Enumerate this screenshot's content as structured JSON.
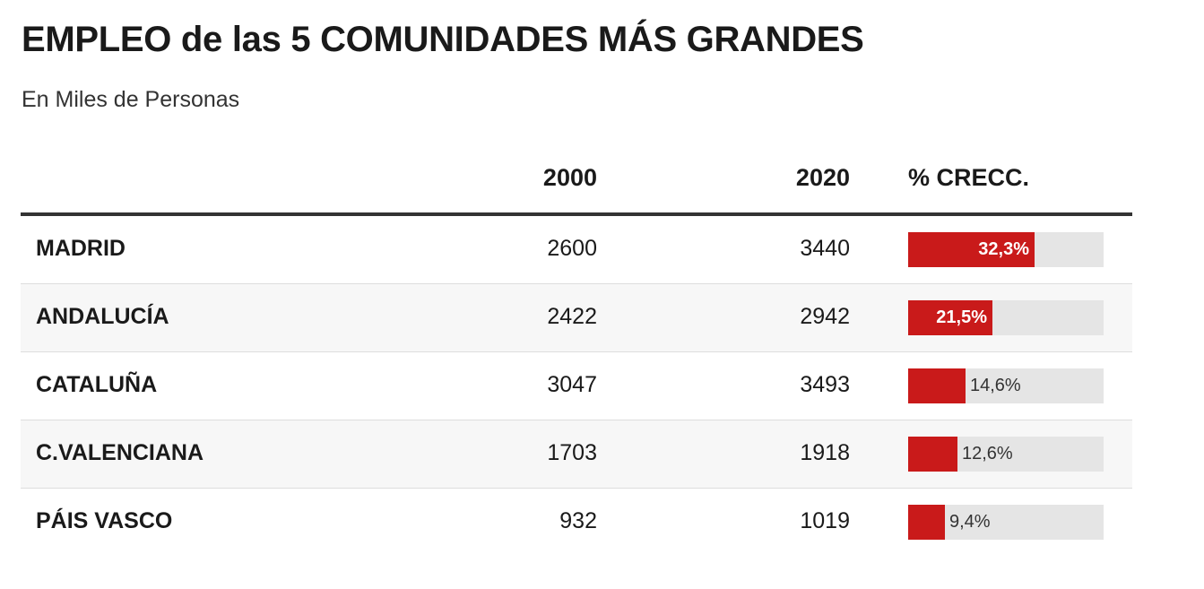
{
  "header": {
    "title": "EMPLEO de las 5 COMUNIDADES MÁS GRANDES",
    "subtitle": "En Miles de Personas"
  },
  "columns": {
    "col_2000": "2000",
    "col_2020": "2020",
    "col_growth": "% CRECC."
  },
  "colors": {
    "bar": "#c91a1a",
    "track": "#e5e5e5",
    "header_rule": "#333333"
  },
  "chart_data": {
    "type": "table",
    "title": "EMPLEO de las 5 COMUNIDADES MÁS GRANDES",
    "subtitle": "En Miles de Personas",
    "columns": [
      "",
      "2000",
      "2020",
      "% CRECC."
    ],
    "growth_max": 50,
    "rows": [
      {
        "name": "MADRID",
        "v2000": "2600",
        "v2020": "3440",
        "growth": 32.3,
        "growth_label": "32,3%"
      },
      {
        "name": "ANDALUCÍA",
        "v2000": "2422",
        "v2020": "2942",
        "growth": 21.5,
        "growth_label": "21,5%"
      },
      {
        "name": "CATALUÑA",
        "v2000": "3047",
        "v2020": "3493",
        "growth": 14.6,
        "growth_label": "14,6%"
      },
      {
        "name": "C.VALENCIANA",
        "v2000": "1703",
        "v2020": "1918",
        "growth": 12.6,
        "growth_label": "12,6%"
      },
      {
        "name": "PÁIS VASCO",
        "v2000": "932",
        "v2020": "1019",
        "growth": 9.4,
        "growth_label": "9,4%"
      }
    ]
  }
}
